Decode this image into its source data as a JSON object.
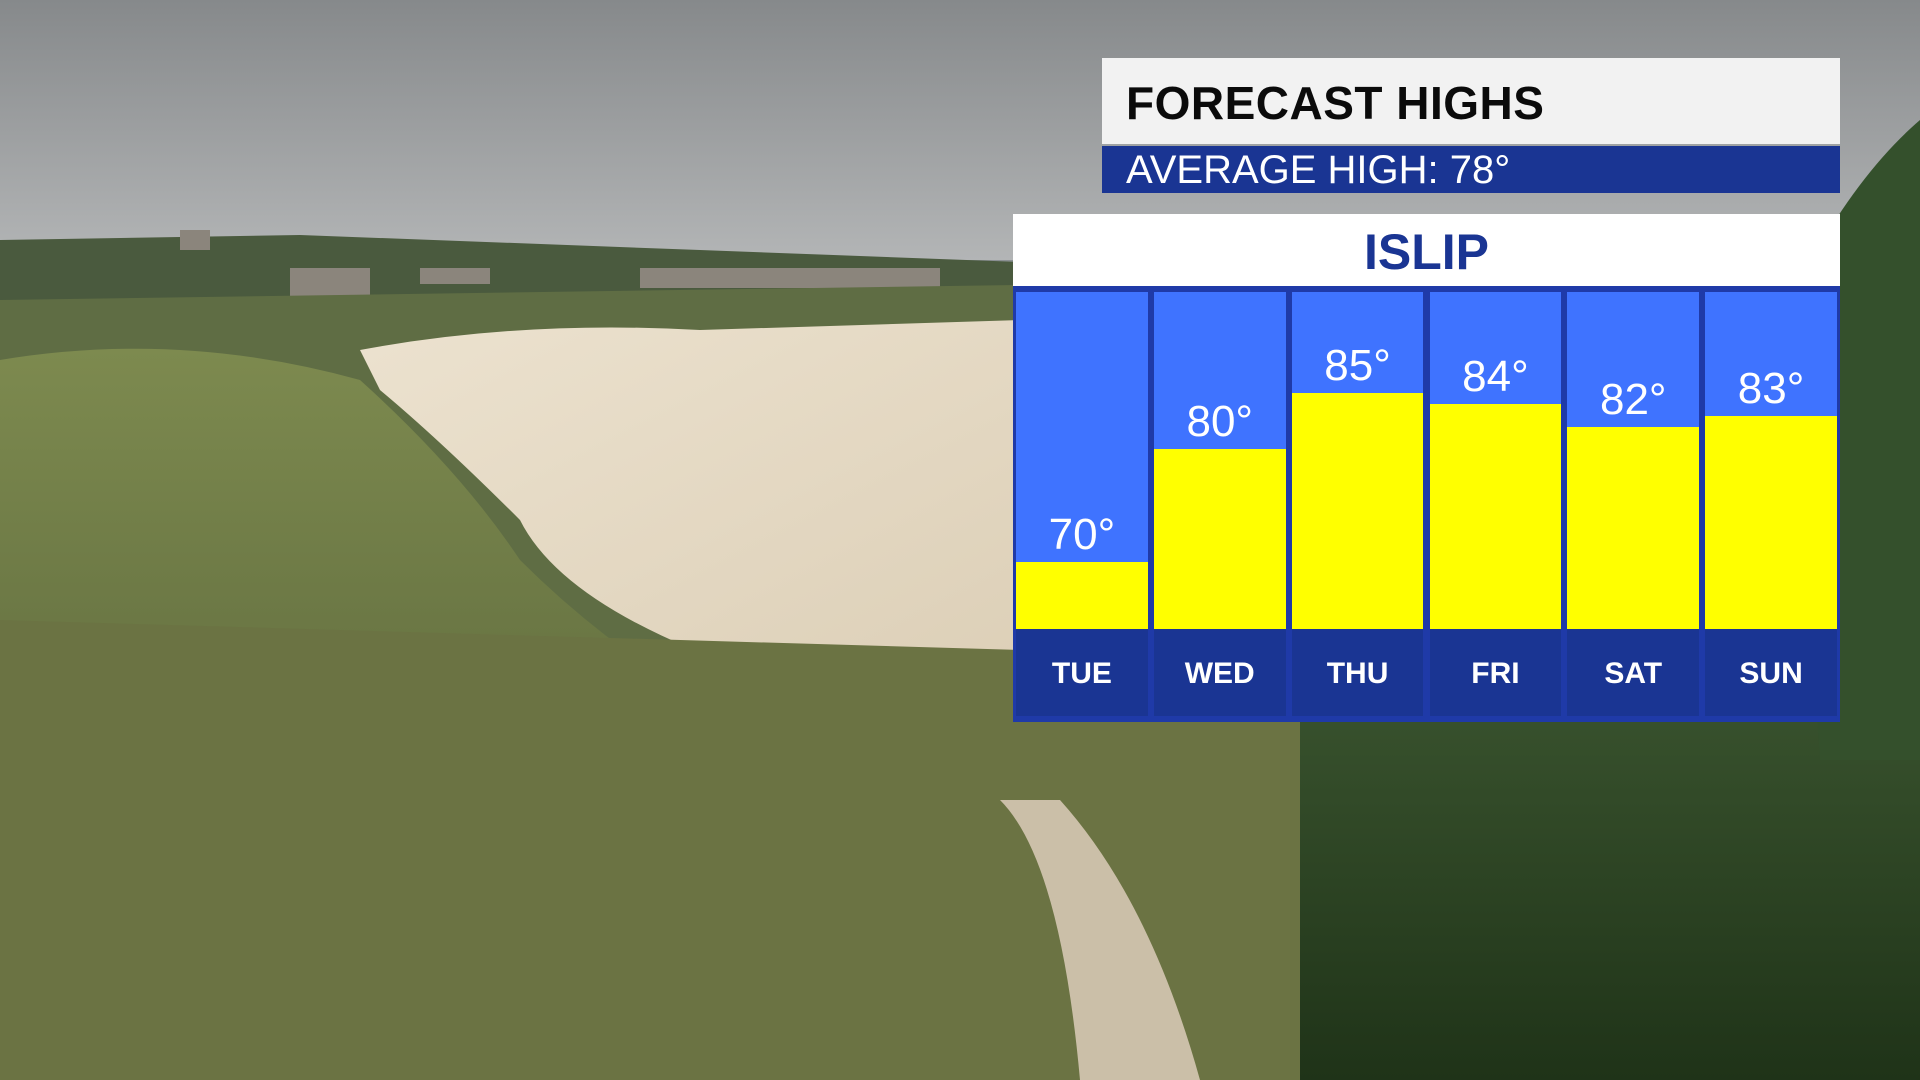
{
  "header": {
    "title": "FORECAST HIGHS",
    "average": "AVERAGE HIGH: 78°"
  },
  "location": "ISLIP",
  "colors": {
    "bar": "#ffff00",
    "column_bg": "#3f73ff",
    "navy": "#1a3593",
    "title_bg": "#f2f2f2"
  },
  "chart_data": {
    "type": "bar",
    "categories": [
      "TUE",
      "WED",
      "THU",
      "FRI",
      "SAT",
      "SUN"
    ],
    "values": [
      70,
      80,
      85,
      84,
      82,
      83
    ],
    "value_labels": [
      "70°",
      "80°",
      "85°",
      "84°",
      "82°",
      "83°"
    ],
    "ylim": [
      64,
      94
    ],
    "grid": false
  }
}
